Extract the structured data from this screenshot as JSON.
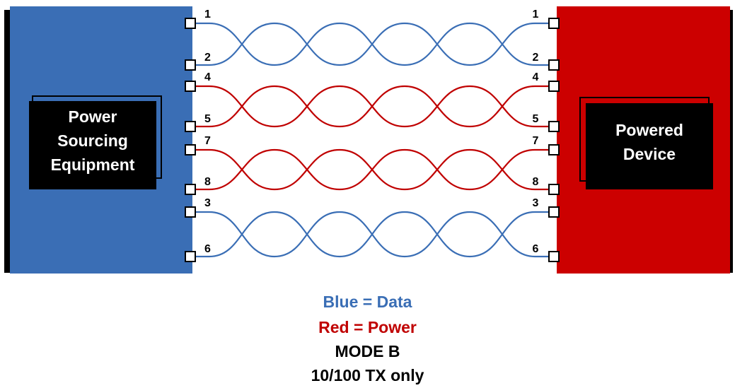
{
  "colors": {
    "data": "#3a6eb5",
    "power": "#c00000",
    "pse_fill": "#3a6eb5",
    "pd_fill": "#cc0000",
    "label_box": "#000000"
  },
  "pse": {
    "label_lines": [
      "Power",
      "Sourcing",
      "Equipment"
    ]
  },
  "pd": {
    "label_lines": [
      "Powered",
      "Device"
    ]
  },
  "pairs": [
    {
      "pins": [
        "1",
        "2"
      ],
      "role": "data"
    },
    {
      "pins": [
        "4",
        "5"
      ],
      "role": "power"
    },
    {
      "pins": [
        "7",
        "8"
      ],
      "role": "power"
    },
    {
      "pins": [
        "3",
        "6"
      ],
      "role": "data"
    }
  ],
  "legend": {
    "line1": "Blue = Data",
    "line2": "Red = Power",
    "line3": "MODE B",
    "line4": "10/100 TX only"
  }
}
